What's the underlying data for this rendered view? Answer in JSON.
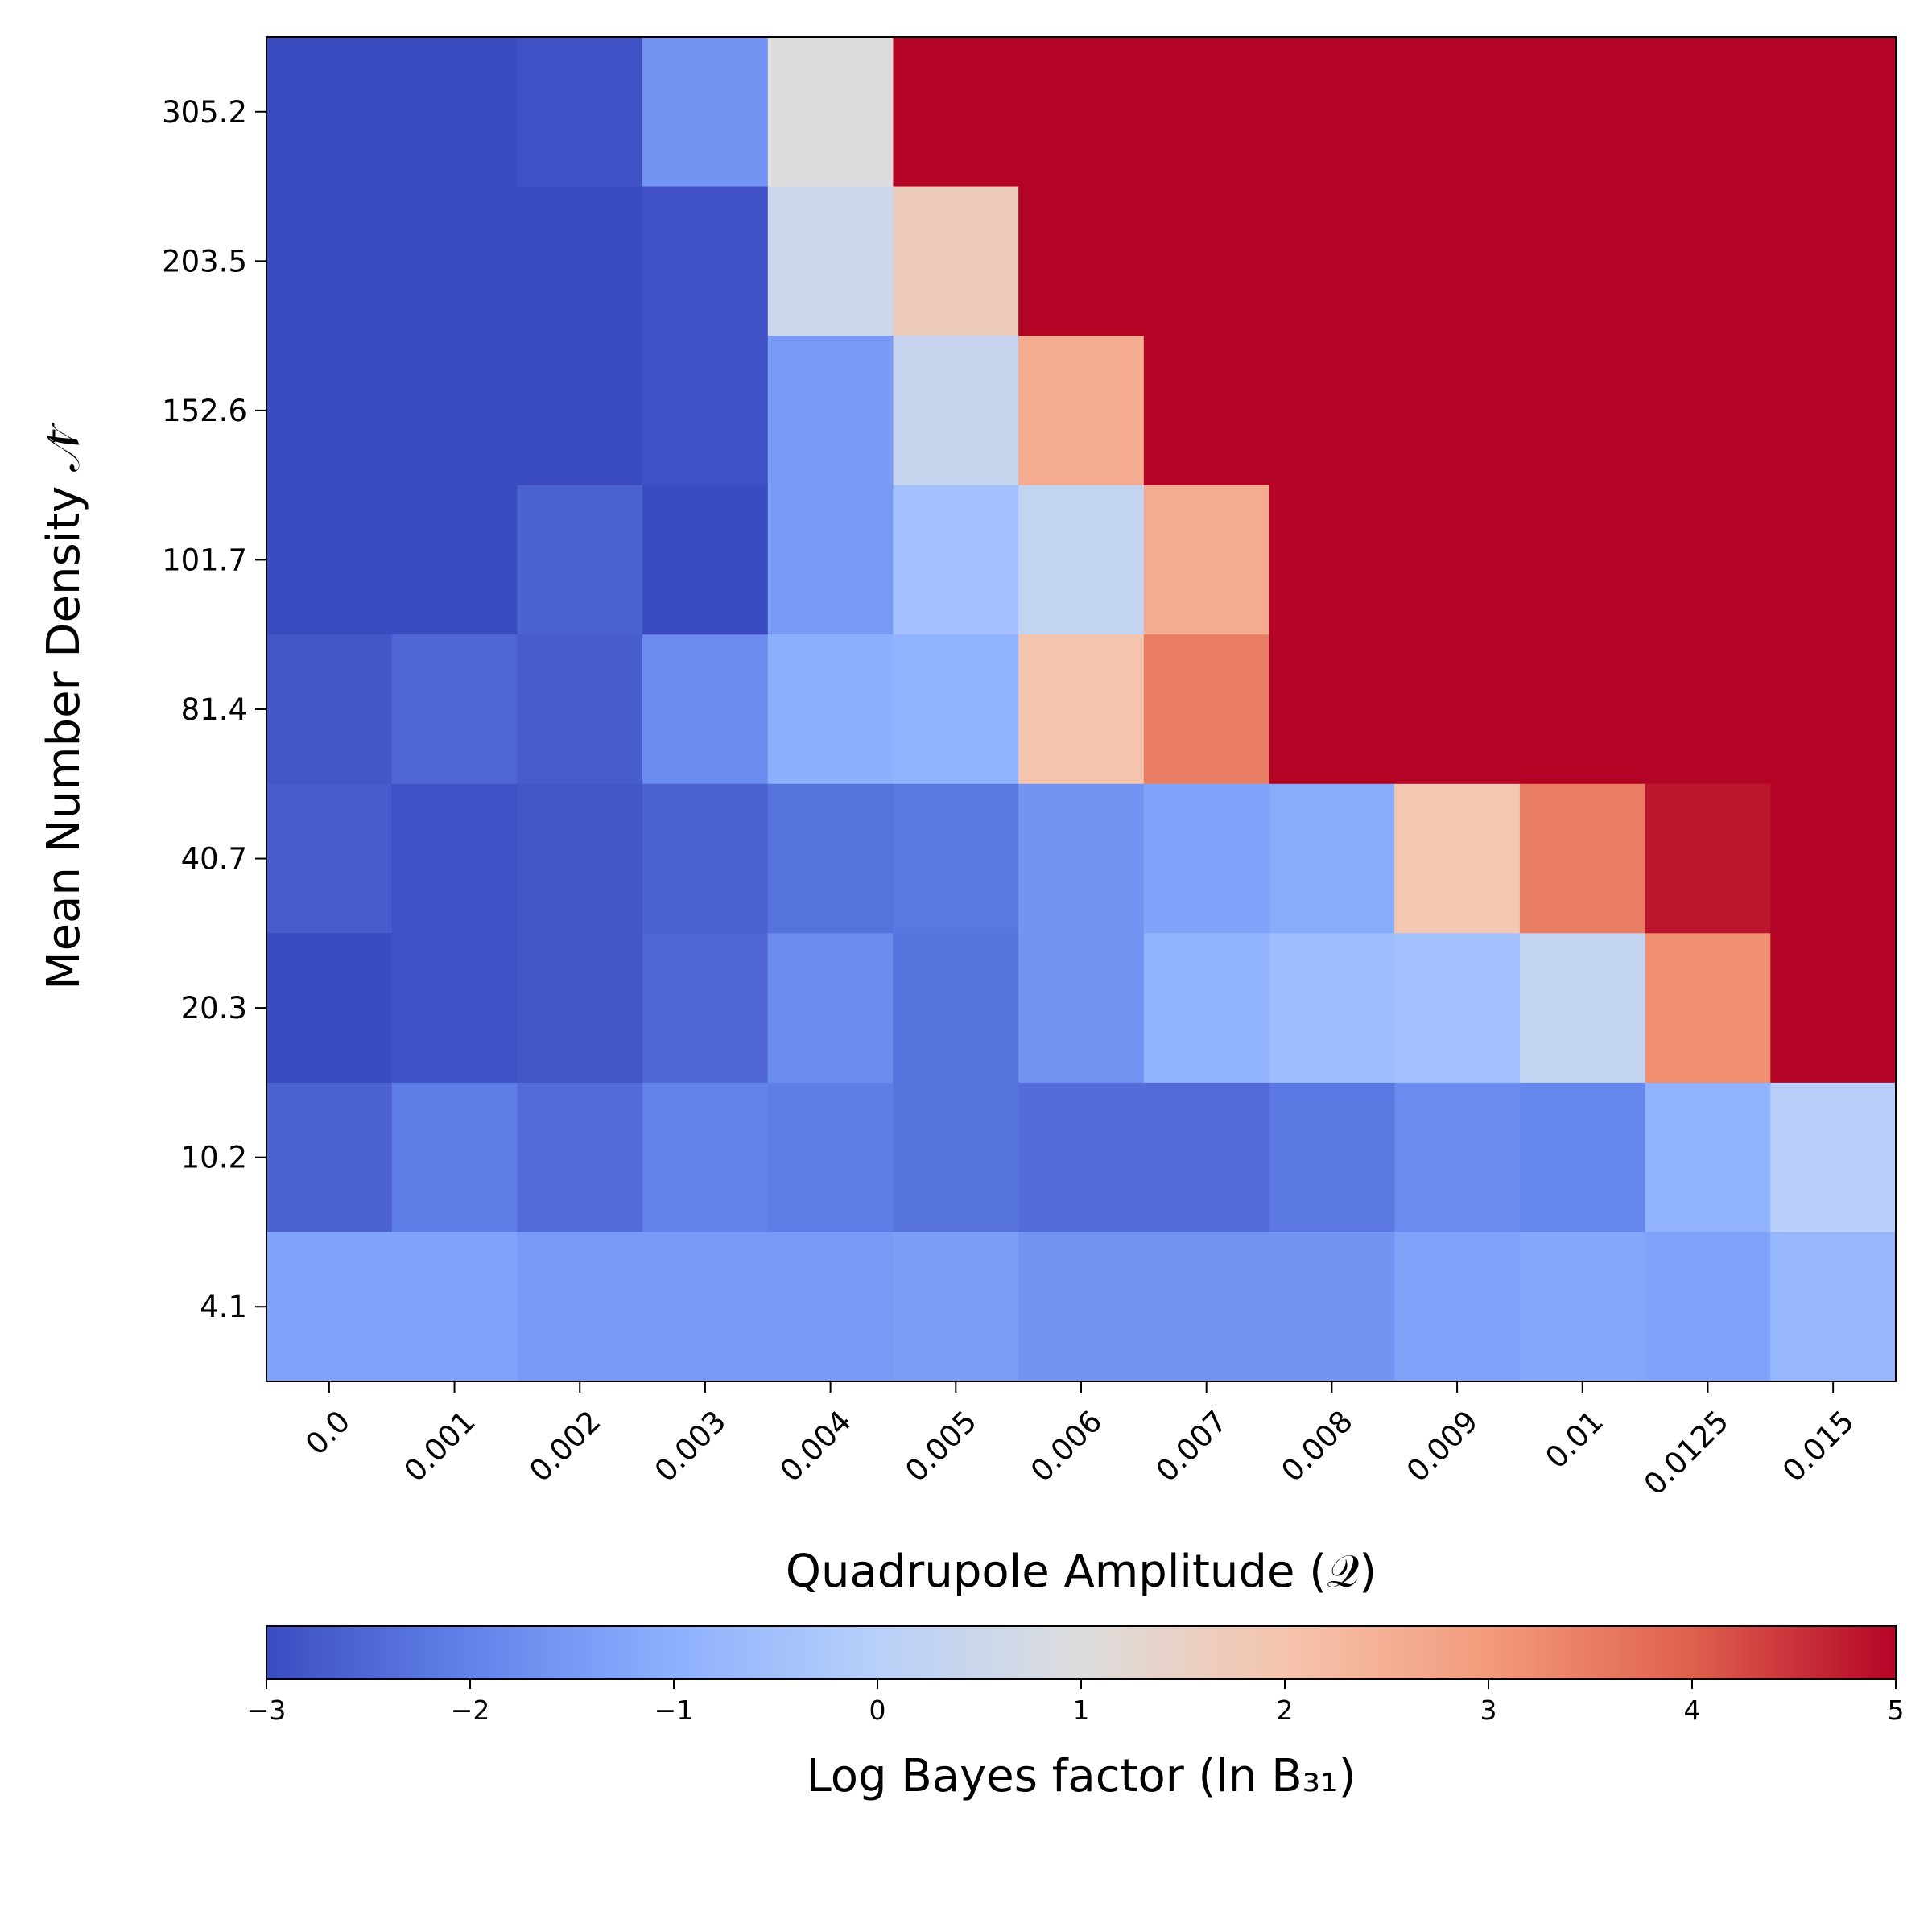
{
  "chart_data": {
    "type": "heatmap",
    "title": "",
    "xlabel": "Quadrupole Amplitude (𝒬)",
    "ylabel": "Mean Number Density 𝒩̄",
    "x_categories": [
      "0.0",
      "0.001",
      "0.002",
      "0.003",
      "0.004",
      "0.005",
      "0.006",
      "0.007",
      "0.008",
      "0.009",
      "0.01",
      "0.0125",
      "0.015"
    ],
    "y_categories": [
      "305.2",
      "203.5",
      "152.6",
      "101.7",
      "81.4",
      "40.7",
      "20.3",
      "10.2",
      "4.1"
    ],
    "values": [
      [
        -3.0,
        -3.0,
        -2.9,
        -1.6,
        1.0,
        5.0,
        5.0,
        5.0,
        5.0,
        5.0,
        5.0,
        5.0,
        5.0
      ],
      [
        -3.0,
        -3.0,
        -3.0,
        -2.9,
        0.5,
        1.7,
        5.0,
        5.0,
        5.0,
        5.0,
        5.0,
        5.0,
        5.0
      ],
      [
        -3.0,
        -3.0,
        -3.0,
        -2.9,
        -1.5,
        0.4,
        2.6,
        5.0,
        5.0,
        5.0,
        5.0,
        5.0,
        5.0
      ],
      [
        -3.0,
        -3.0,
        -2.6,
        -3.0,
        -1.5,
        -0.5,
        0.3,
        2.6,
        5.0,
        5.0,
        5.0,
        5.0,
        5.0
      ],
      [
        -2.8,
        -2.5,
        -2.7,
        -1.8,
        -1.0,
        -0.9,
        2.0,
        3.5,
        5.0,
        5.0,
        5.0,
        5.0,
        5.0
      ],
      [
        -2.7,
        -2.9,
        -2.8,
        -2.6,
        -2.3,
        -2.2,
        -1.6,
        -1.3,
        -1.1,
        1.9,
        3.5,
        4.8,
        5.0
      ],
      [
        -3.0,
        -2.9,
        -2.8,
        -2.5,
        -1.8,
        -2.3,
        -1.6,
        -0.9,
        -0.6,
        -0.5,
        0.3,
        3.2,
        5.0
      ],
      [
        -2.6,
        -2.1,
        -2.4,
        -2.0,
        -2.1,
        -2.3,
        -2.4,
        -2.4,
        -2.2,
        -1.8,
        -1.9,
        -0.9,
        0.0
      ],
      [
        -1.3,
        -1.3,
        -1.5,
        -1.5,
        -1.5,
        -1.4,
        -1.6,
        -1.6,
        -1.6,
        -1.3,
        -1.2,
        -1.3,
        -0.8
      ]
    ],
    "colormap": "coolwarm",
    "vmin": -3,
    "vmax": 5,
    "colorbar": {
      "label": "Log Bayes factor (ln B₃₁)",
      "ticks": [
        -3,
        -2,
        -1,
        0,
        1,
        2,
        3,
        4,
        5
      ],
      "tick_labels": [
        "−3",
        "−2",
        "−1",
        "0",
        "1",
        "2",
        "3",
        "4",
        "5"
      ],
      "orientation": "horizontal",
      "placement": "bottom"
    }
  }
}
